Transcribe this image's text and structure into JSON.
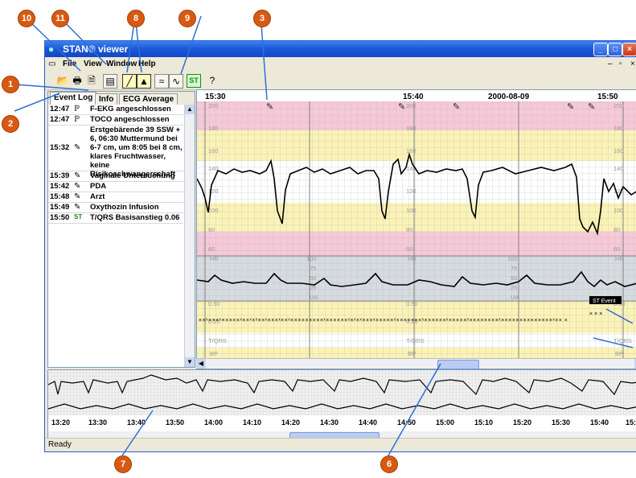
{
  "window": {
    "title": "STAN® viewer",
    "status": "Ready"
  },
  "menu": {
    "items": [
      "File",
      "View",
      "Window",
      "Help"
    ]
  },
  "toolbar": {
    "st_label": "ST",
    "icons": [
      "open-icon",
      "print-icon",
      "print-preview-icon",
      "export-icon",
      "trend-icon",
      "chart-icon",
      "overview-icon",
      "wave-icon",
      "st-icon",
      "help-icon"
    ]
  },
  "tabs": [
    {
      "label": "Event Log",
      "selected": true
    },
    {
      "label": "Info",
      "selected": false
    },
    {
      "label": "ECG Average",
      "selected": false
    }
  ],
  "event_log": [
    {
      "time": "12:47",
      "icon": "ecg-icon",
      "text": "F-EKG angeschlossen"
    },
    {
      "time": "12:47",
      "icon": "ecg-icon",
      "text": "TOCO angeschlossen"
    },
    {
      "time": "15:32",
      "icon": "pencil-icon",
      "text": "Erstgebärende 39 SSW + 6, 06:30 Muttermund bei 6-7 cm, um 8:05 bei 8 cm, klares Fruchtwasser, keine Risikoschwangerschaft"
    },
    {
      "time": "15:39",
      "icon": "pencil-icon",
      "text": "Vaginale Untersuchung"
    },
    {
      "time": "15:42",
      "icon": "pencil-icon",
      "text": "PDA"
    },
    {
      "time": "15:48",
      "icon": "pencil-icon",
      "text": "Arzt"
    },
    {
      "time": "15:49",
      "icon": "pencil-icon",
      "text": "Oxythozin Infusion"
    },
    {
      "time": "15:50",
      "icon": "st-icon",
      "text": "T/QRS Basisanstieg 0.06"
    }
  ],
  "chart": {
    "times": [
      "15:30",
      "15:40",
      "15:50"
    ],
    "date": "2000-08-09",
    "fhr_labels": [
      "200",
      "180",
      "160",
      "140",
      "120",
      "100",
      "80",
      "60"
    ],
    "hr_label": "HR",
    "ua_labels": [
      "100",
      "75",
      "50",
      "25"
    ],
    "ua_label": "UA",
    "st_labels": [
      "0.50",
      "0.25"
    ],
    "tqrs_label": "T/QRS",
    "bp_label": "BP",
    "st_event_label": "ST Event"
  },
  "overview": {
    "times": [
      "13:20",
      "13:30",
      "13:40",
      "13:50",
      "14:00",
      "14:10",
      "14:20",
      "14:30",
      "14:40",
      "14:50",
      "15:00",
      "15:10",
      "15:20",
      "15:30",
      "15:40",
      "15:5"
    ]
  },
  "callouts": [
    "1",
    "2",
    "3",
    "6",
    "7",
    "8",
    "9",
    "10",
    "11"
  ],
  "colors": {
    "callout": "#d85a12",
    "pink_band": "#f6c8d8",
    "yellow_band": "#fbf3b6",
    "gray_band": "#d6dbe0",
    "titlebar": "#1a57d8"
  }
}
